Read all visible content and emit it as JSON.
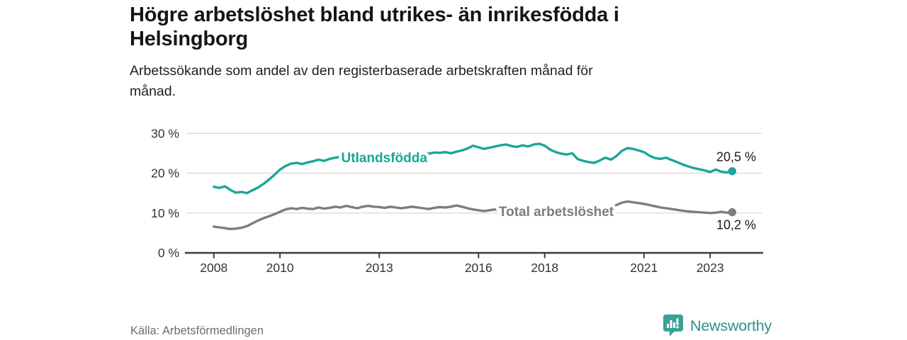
{
  "header": {
    "title_line1": "Högre arbetslöshet bland utrikes- än inrikesfödda i",
    "title_line2": "Helsingborg",
    "subtitle_line1": "Arbetssökande som andel av den registerbaserade arbetskraften månad för",
    "subtitle_line2": "månad."
  },
  "footer": {
    "source": "Källa: Arbetsförmedlingen",
    "brand": "Newsworthy",
    "logo_icon": "bar-chart-speech-bubble-icon"
  },
  "colors": {
    "accent_teal": "#1aa698",
    "line_gray": "#7d7d7d",
    "grid": "#d8d8d8",
    "axis": "#3d3d3d",
    "tick_text": "#333333",
    "value_text": "#1a1a1a",
    "brand_teal": "#3aa096"
  },
  "chart_data": {
    "type": "line",
    "title": "Högre arbetslöshet bland utrikes- än inrikesfödda i Helsingborg",
    "subtitle": "Arbetssökande som andel av den registerbaserade arbetskraften månad för månad.",
    "xlabel": "",
    "ylabel": "",
    "grid": "horizontal",
    "legend_position": "inline-labels",
    "xlim": [
      2007.17,
      2024.56
    ],
    "ylim": [
      0,
      30
    ],
    "x_start": 2008.0,
    "x_step_years": 0.166667,
    "x_ticks": [
      {
        "value": 2008,
        "label": "2008"
      },
      {
        "value": 2010,
        "label": "2010"
      },
      {
        "value": 2013,
        "label": "2013"
      },
      {
        "value": 2016,
        "label": "2016"
      },
      {
        "value": 2018,
        "label": "2018"
      },
      {
        "value": 2021,
        "label": "2021"
      },
      {
        "value": 2023,
        "label": "2023"
      }
    ],
    "y_ticks": [
      {
        "value": 0,
        "label": "0 %"
      },
      {
        "value": 10,
        "label": "10 %"
      },
      {
        "value": 20,
        "label": "20 %"
      },
      {
        "value": 30,
        "label": "30 %"
      }
    ],
    "series": [
      {
        "id": "utlandsfodda",
        "label": "Utlandsfödda",
        "color": "#1aa698",
        "end_label": "20,5 %",
        "end_value": 20.5,
        "end_label_side": "above",
        "label_x": 2013.15,
        "label_y": 23.9,
        "values": [
          16.6,
          16.3,
          16.7,
          15.8,
          15.1,
          15.3,
          15.0,
          15.7,
          16.4,
          17.3,
          18.4,
          19.6,
          20.9,
          21.8,
          22.4,
          22.6,
          22.3,
          22.7,
          23.0,
          23.4,
          23.1,
          23.6,
          23.9,
          24.1,
          24.3,
          24.6,
          24.2,
          24.5,
          24.8,
          24.6,
          24.4,
          24.7,
          24.5,
          24.8,
          24.6,
          24.9,
          25.0,
          24.8,
          25.1,
          24.9,
          25.2,
          25.1,
          25.3,
          25.0,
          25.4,
          25.7,
          26.2,
          26.9,
          26.5,
          26.1,
          26.4,
          26.7,
          27.0,
          27.2,
          26.8,
          26.6,
          27.0,
          26.7,
          27.2,
          27.4,
          26.9,
          25.9,
          25.3,
          24.9,
          24.7,
          25.0,
          23.5,
          23.1,
          22.8,
          22.6,
          23.2,
          23.9,
          23.4,
          24.3,
          25.6,
          26.3,
          26.1,
          25.7,
          25.3,
          24.4,
          23.8,
          23.6,
          23.9,
          23.3,
          22.8,
          22.2,
          21.7,
          21.3,
          21.0,
          20.7,
          20.3,
          20.9,
          20.4,
          20.2,
          20.5
        ]
      },
      {
        "id": "total",
        "label": "Total arbetslöshet",
        "color": "#7d7d7d",
        "end_label": "10,2 %",
        "end_value": 10.2,
        "end_label_side": "below",
        "label_x": 2018.35,
        "label_y": 10.4,
        "values": [
          6.6,
          6.4,
          6.2,
          6.0,
          6.1,
          6.3,
          6.7,
          7.4,
          8.1,
          8.7,
          9.2,
          9.7,
          10.3,
          10.9,
          11.2,
          11.0,
          11.3,
          11.1,
          11.0,
          11.4,
          11.1,
          11.3,
          11.6,
          11.4,
          11.8,
          11.5,
          11.2,
          11.6,
          11.8,
          11.6,
          11.5,
          11.3,
          11.6,
          11.4,
          11.2,
          11.4,
          11.6,
          11.4,
          11.2,
          11.0,
          11.3,
          11.5,
          11.4,
          11.6,
          11.9,
          11.6,
          11.2,
          10.9,
          10.7,
          10.5,
          10.7,
          10.9,
          10.8,
          11.0,
          11.1,
          10.9,
          11.0,
          10.8,
          10.7,
          10.6,
          10.7,
          10.5,
          10.4,
          10.3,
          10.4,
          10.3,
          10.2,
          10.3,
          10.5,
          10.4,
          10.6,
          10.9,
          11.3,
          12.0,
          12.6,
          12.9,
          12.7,
          12.5,
          12.3,
          12.0,
          11.7,
          11.4,
          11.2,
          11.0,
          10.8,
          10.6,
          10.4,
          10.3,
          10.2,
          10.1,
          10.0,
          10.1,
          10.3,
          10.1,
          10.2
        ]
      }
    ]
  }
}
